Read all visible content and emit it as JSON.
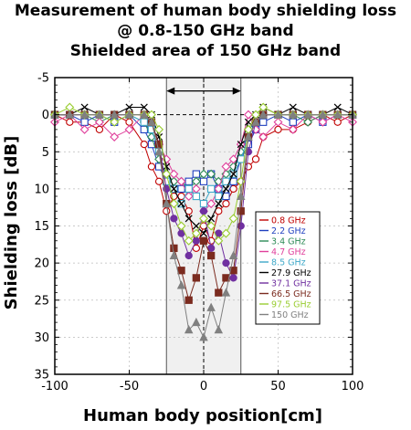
{
  "chart_data": {
    "type": "line",
    "title_lines": [
      "Measurement of human body shielding loss",
      "@ 0.8-150 GHz band",
      "Shielded area of 150 GHz band"
    ],
    "xlabel": "Human body position[cm]",
    "ylabel": "Shielding loss [dB]",
    "xlim": [
      -100,
      100
    ],
    "ylim": [
      -5,
      35
    ],
    "y_inverted": true,
    "xticks": [
      "-100",
      "-50",
      "0",
      "50",
      "100"
    ],
    "yticks": [
      "-5",
      "0",
      "5",
      "10",
      "15",
      "20",
      "25",
      "30",
      "35"
    ],
    "shaded_region": [
      -25,
      25
    ],
    "legend_position": "right",
    "x": [
      -100,
      -90,
      -80,
      -70,
      -60,
      -50,
      -40,
      -35,
      -30,
      -25,
      -20,
      -15,
      -10,
      -5,
      0,
      5,
      10,
      15,
      20,
      25,
      30,
      35,
      40,
      50,
      60,
      70,
      80,
      90,
      100
    ],
    "series": [
      {
        "name": "0.8 GHz",
        "color": "#c00000",
        "marker": "circle",
        "values": [
          0,
          1,
          1,
          2,
          0,
          1,
          4,
          7,
          9,
          13,
          11,
          11,
          13,
          18,
          15,
          17,
          13,
          12,
          10,
          9,
          7,
          6,
          3,
          2,
          2,
          1,
          0,
          1,
          0
        ]
      },
      {
        "name": "2.2 GHz",
        "color": "#1f3fbf",
        "marker": "square",
        "values": [
          0,
          0,
          1,
          0,
          1,
          0,
          2,
          4,
          7,
          9,
          10,
          10,
          9,
          8,
          9,
          8,
          10,
          11,
          9,
          6,
          4,
          2,
          1,
          0,
          1,
          0,
          1,
          0,
          0
        ]
      },
      {
        "name": "3.4 GHz",
        "color": "#2e8b57",
        "marker": "diamond",
        "values": [
          0,
          0,
          0,
          1,
          0,
          0,
          1,
          3,
          6,
          8,
          9,
          9,
          10,
          9,
          8,
          8,
          9,
          8,
          7,
          5,
          2,
          1,
          0,
          0,
          0,
          1,
          0,
          0,
          0
        ]
      },
      {
        "name": "4.7 GHz",
        "color": "#e0409c",
        "marker": "diamond",
        "values": [
          1,
          0,
          2,
          1,
          3,
          2,
          0,
          1,
          4,
          6,
          8,
          9,
          11,
          10,
          13,
          12,
          10,
          7,
          6,
          4,
          0,
          2,
          3,
          1,
          2,
          0,
          1,
          0,
          1
        ]
      },
      {
        "name": "8.5 GHz",
        "color": "#3fa9c9",
        "marker": "square",
        "values": [
          0,
          0,
          0,
          0,
          0,
          0,
          1,
          2,
          5,
          9,
          10,
          12,
          10,
          11,
          12,
          10,
          11,
          9,
          8,
          6,
          3,
          1,
          0,
          0,
          0,
          0,
          0,
          0,
          0
        ]
      },
      {
        "name": "27.9 GHz",
        "color": "#000000",
        "marker": "x",
        "values": [
          0,
          0,
          -1,
          0,
          0,
          -1,
          -1,
          0,
          3,
          7,
          10,
          12,
          14,
          15,
          16,
          14,
          12,
          10,
          8,
          4,
          1,
          0,
          -1,
          0,
          -1,
          0,
          0,
          -1,
          0
        ]
      },
      {
        "name": "37.1 GHz",
        "color": "#7030a0",
        "marker": "circle",
        "values": [
          0,
          0,
          0,
          0,
          0,
          0,
          0,
          1,
          4,
          10,
          14,
          16,
          19,
          17,
          13,
          18,
          16,
          20,
          22,
          15,
          5,
          1,
          0,
          0,
          0,
          0,
          0,
          0,
          0
        ]
      },
      {
        "name": "66.5 GHz",
        "color": "#7b2b1f",
        "marker": "square",
        "values": [
          0,
          0,
          0,
          0,
          0,
          0,
          0,
          1,
          4,
          12,
          18,
          21,
          25,
          22,
          17,
          19,
          24,
          22,
          21,
          13,
          3,
          1,
          0,
          0,
          0,
          0,
          0,
          0,
          0
        ]
      },
      {
        "name": "97.5 GHz",
        "color": "#9acd32",
        "marker": "diamond",
        "values": [
          0,
          -1,
          0,
          0,
          1,
          0,
          0,
          0,
          2,
          8,
          12,
          15,
          17,
          16,
          14,
          15,
          17,
          16,
          14,
          9,
          2,
          0,
          -1,
          0,
          0,
          0,
          0,
          0,
          0
        ]
      },
      {
        "name": "150 GHz",
        "color": "#808080",
        "marker": "triangle",
        "values": [
          0,
          0,
          0,
          0,
          0,
          0,
          0,
          1,
          5,
          12,
          19,
          23,
          29,
          28,
          30,
          26,
          29,
          24,
          19,
          11,
          3,
          1,
          0,
          0,
          0,
          0,
          0,
          0,
          0
        ]
      }
    ]
  }
}
